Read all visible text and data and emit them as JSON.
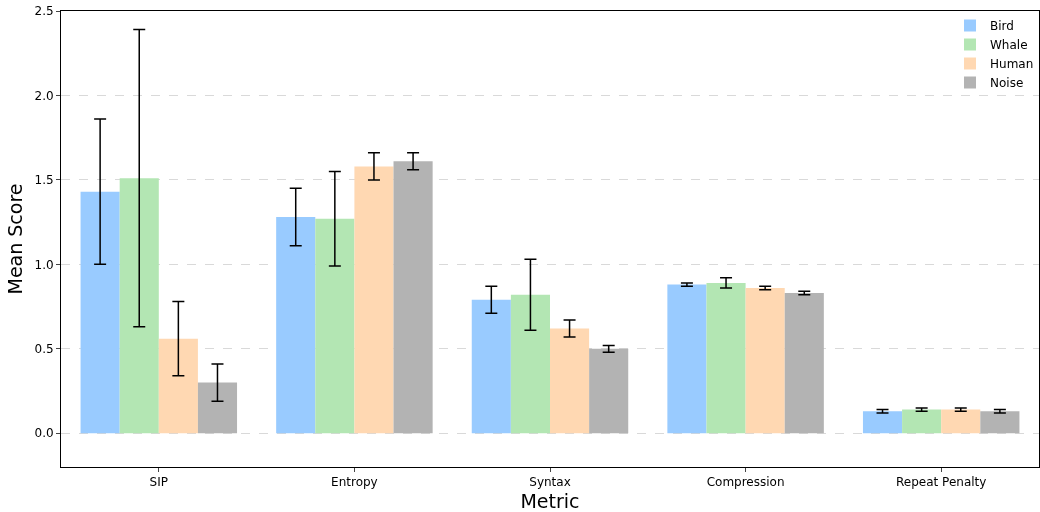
{
  "chart_data": {
    "type": "bar",
    "xlabel": "Metric",
    "ylabel": "Mean Score",
    "categories": [
      "SIP",
      "Entropy",
      "Syntax",
      "Compression",
      "Repeat Penalty"
    ],
    "series": [
      {
        "name": "Bird",
        "color": "#99cbff",
        "values": [
          1.43,
          1.28,
          0.79,
          0.88,
          0.13
        ],
        "errors": [
          0.43,
          0.17,
          0.08,
          0.01,
          0.01
        ]
      },
      {
        "name": "Whale",
        "color": "#b3e6b3",
        "values": [
          1.51,
          1.27,
          0.82,
          0.89,
          0.14
        ],
        "errors": [
          0.88,
          0.28,
          0.21,
          0.03,
          0.01
        ]
      },
      {
        "name": "Human",
        "color": "#ffd8b2",
        "values": [
          0.56,
          1.58,
          0.62,
          0.86,
          0.14
        ],
        "errors": [
          0.22,
          0.08,
          0.05,
          0.01,
          0.01
        ]
      },
      {
        "name": "Noise",
        "color": "#b3b3b3",
        "values": [
          0.3,
          1.61,
          0.5,
          0.83,
          0.13
        ],
        "errors": [
          0.11,
          0.05,
          0.02,
          0.01,
          0.01
        ]
      }
    ],
    "ylim": [
      -0.2,
      2.5
    ],
    "yticks": [
      {
        "value": 0,
        "label": "0.0"
      },
      {
        "value": 0.5,
        "label": "0.5"
      },
      {
        "value": 1,
        "label": "1.0"
      },
      {
        "value": 1.5,
        "label": "1.5"
      },
      {
        "value": 2,
        "label": "2.0"
      },
      {
        "value": 2.5,
        "label": "2.5"
      }
    ],
    "grid": "y",
    "legend": "top right"
  }
}
